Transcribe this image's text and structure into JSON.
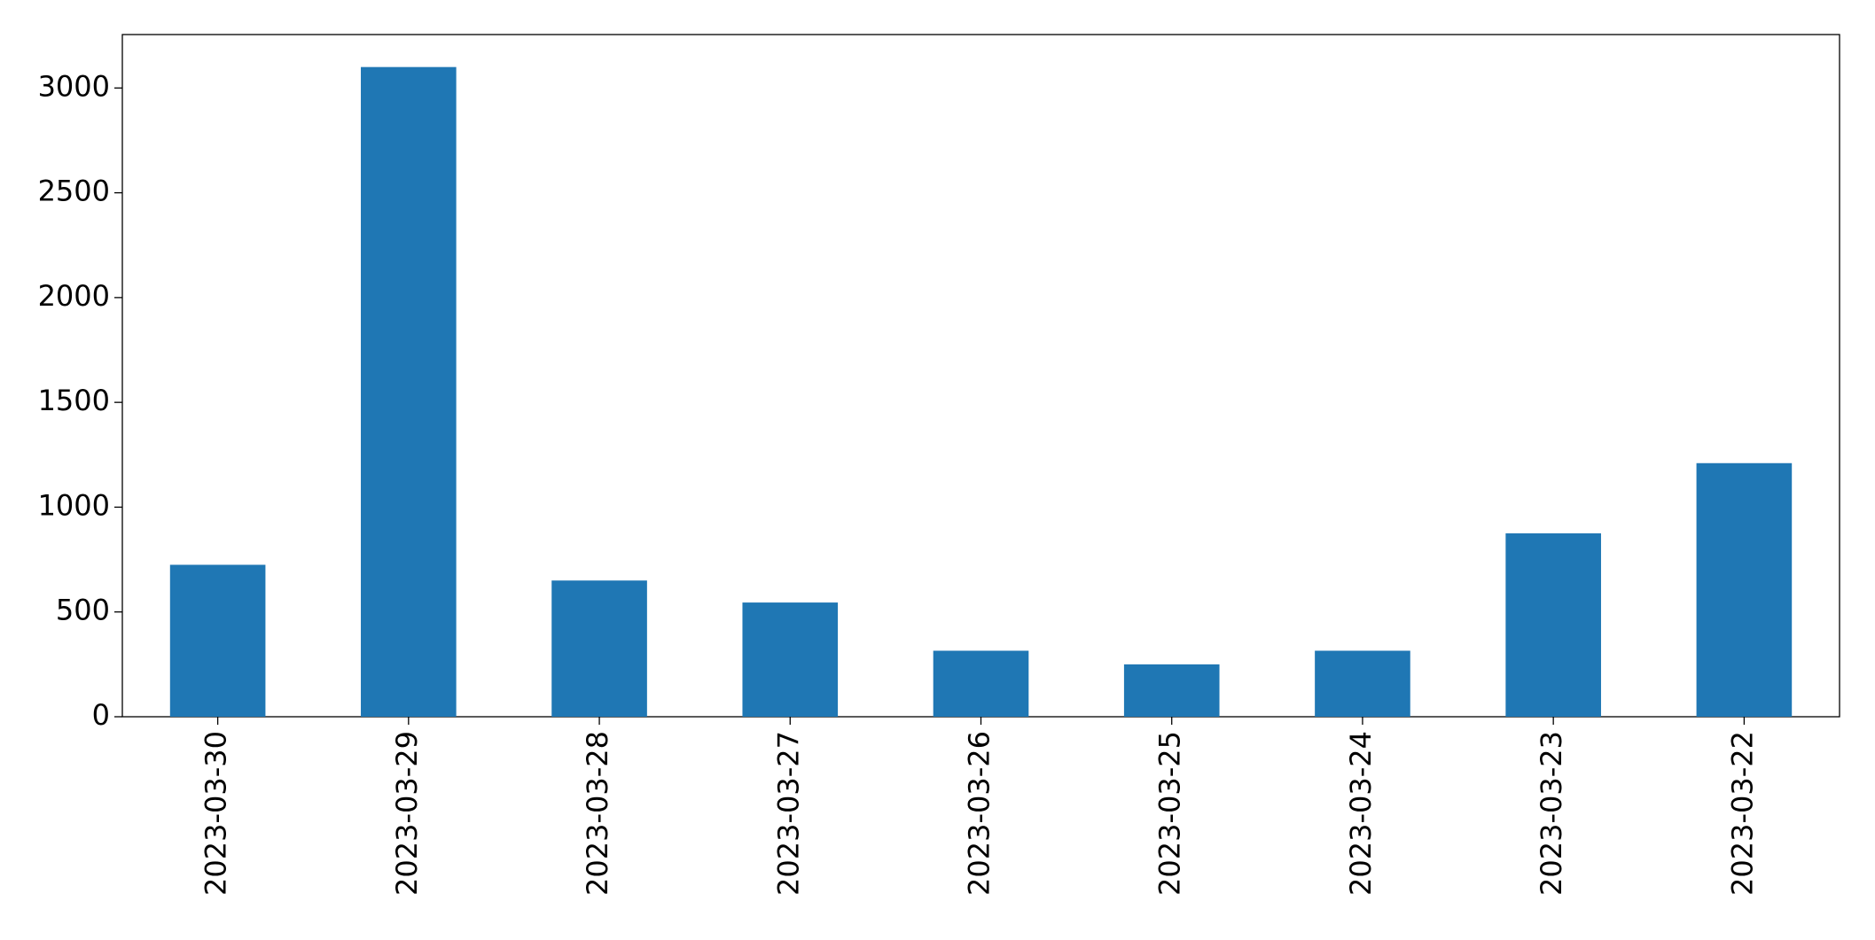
{
  "chart_data": {
    "type": "bar",
    "categories": [
      "2023-03-30",
      "2023-03-29",
      "2023-03-28",
      "2023-03-27",
      "2023-03-26",
      "2023-03-25",
      "2023-03-24",
      "2023-03-23",
      "2023-03-22"
    ],
    "values": [
      725,
      3100,
      650,
      545,
      315,
      250,
      315,
      875,
      1210
    ],
    "color": "#1f77b4",
    "ylim": [
      0,
      3255
    ],
    "yticks": [
      0,
      500,
      1000,
      1500,
      2000,
      2500,
      3000
    ],
    "grid": false
  }
}
